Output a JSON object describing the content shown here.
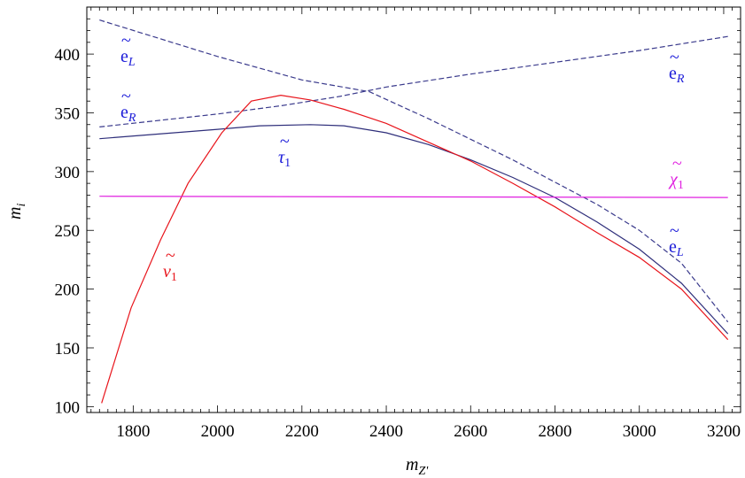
{
  "chart_data": {
    "type": "line",
    "title": "",
    "xlabel": "m_Z'",
    "ylabel": "m_i",
    "xlim": [
      1690,
      3240
    ],
    "ylim": [
      95,
      440
    ],
    "x_ticks": [
      1800,
      2000,
      2200,
      2400,
      2600,
      2800,
      3000,
      3200
    ],
    "y_ticks": [
      100,
      150,
      200,
      250,
      300,
      350,
      400
    ],
    "grid": false,
    "legend": "none",
    "series": [
      {
        "name": "ẽ_L",
        "color": "#3a3a8c",
        "style": "dashed",
        "points": [
          [
            1720,
            429
          ],
          [
            2000,
            398
          ],
          [
            2200,
            378
          ],
          [
            2360,
            368
          ],
          [
            2500,
            345
          ],
          [
            2700,
            310
          ],
          [
            2900,
            272
          ],
          [
            3000,
            250
          ],
          [
            3100,
            222
          ],
          [
            3210,
            172
          ]
        ]
      },
      {
        "name": "ẽ_R",
        "color": "#3a3a8c",
        "style": "dashed",
        "points": [
          [
            1720,
            338
          ],
          [
            2000,
            349
          ],
          [
            2150,
            356
          ],
          [
            2290,
            364
          ],
          [
            2400,
            372
          ],
          [
            2600,
            383
          ],
          [
            2800,
            393
          ],
          [
            3000,
            403
          ],
          [
            3210,
            415
          ]
        ]
      },
      {
        "name": "τ̃_1",
        "color": "#2e2e7a",
        "style": "solid",
        "points": [
          [
            1720,
            328
          ],
          [
            2000,
            336
          ],
          [
            2100,
            339
          ],
          [
            2220,
            340
          ],
          [
            2300,
            339
          ],
          [
            2400,
            333
          ],
          [
            2500,
            323
          ],
          [
            2600,
            310
          ],
          [
            2700,
            295
          ],
          [
            2800,
            278
          ],
          [
            2900,
            257
          ],
          [
            3000,
            234
          ],
          [
            3100,
            205
          ],
          [
            3210,
            162
          ]
        ]
      },
      {
        "name": "ν̃_1",
        "color": "#e8141b",
        "style": "solid",
        "points": [
          [
            1725,
            103
          ],
          [
            1795,
            184
          ],
          [
            1865,
            242
          ],
          [
            1930,
            290
          ],
          [
            2010,
            333
          ],
          [
            2080,
            360
          ],
          [
            2150,
            365
          ],
          [
            2220,
            361
          ],
          [
            2300,
            353
          ],
          [
            2400,
            341
          ],
          [
            2500,
            325
          ],
          [
            2600,
            309
          ],
          [
            2700,
            290
          ],
          [
            2800,
            270
          ],
          [
            2900,
            248
          ],
          [
            3000,
            227
          ],
          [
            3100,
            200
          ],
          [
            3210,
            157
          ]
        ]
      },
      {
        "name": "χ̃_1",
        "color": "#e020e0",
        "style": "solid",
        "points": [
          [
            1720,
            279
          ],
          [
            3210,
            278
          ]
        ]
      }
    ]
  },
  "labels": {
    "eL_top": {
      "base": "e",
      "sub": "L",
      "tilde": "~",
      "color": "#1a1ad8"
    },
    "eR_left": {
      "base": "e",
      "sub": "R",
      "tilde": "~",
      "color": "#1a1ad8"
    },
    "tau1": {
      "base": "τ",
      "sub": "1",
      "tilde": "~",
      "color": "#1a1ad8"
    },
    "nu1": {
      "base": "ν",
      "sub": "1",
      "tilde": "~",
      "color": "#e8141b"
    },
    "chi1": {
      "base": "χ",
      "sub": "1",
      "tilde": "~",
      "color": "#e020e0"
    },
    "eR_right": {
      "base": "e",
      "sub": "R",
      "tilde": "~",
      "color": "#1a1ad8"
    },
    "eL_right": {
      "base": "e",
      "sub": "L",
      "tilde": "~",
      "color": "#1a1ad8"
    }
  },
  "axes": {
    "xlabel_base": "m",
    "xlabel_sub": "Z'",
    "ylabel_base": "m",
    "ylabel_sub": "i"
  }
}
